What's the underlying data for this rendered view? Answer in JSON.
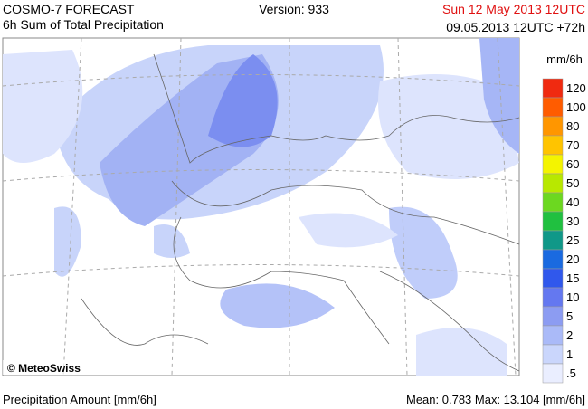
{
  "header": {
    "product": "COSMO-7 FORECAST",
    "subtitle": "6h Sum of Total Precipitation",
    "version": "Version: 933",
    "valid_time": "Sun 12 May 2013 12UTC",
    "run": "09.05.2013 12UTC +72h"
  },
  "map": {
    "copyright": "© MeteoSwiss"
  },
  "legend": {
    "title": "mm/6h",
    "entries": [
      {
        "label": "120",
        "color": "#f02a10"
      },
      {
        "label": "100",
        "color": "#ff5c00"
      },
      {
        "label": "80",
        "color": "#ff9600"
      },
      {
        "label": "70",
        "color": "#ffc400"
      },
      {
        "label": "60",
        "color": "#f4f400"
      },
      {
        "label": "50",
        "color": "#b8e800"
      },
      {
        "label": "40",
        "color": "#6cd820"
      },
      {
        "label": "30",
        "color": "#20c040"
      },
      {
        "label": "25",
        "color": "#109888"
      },
      {
        "label": "20",
        "color": "#1a6ae0"
      },
      {
        "label": "15",
        "color": "#3058ec"
      },
      {
        "label": "10",
        "color": "#6478f0"
      },
      {
        "label": "5",
        "color": "#8c9cf2"
      },
      {
        "label": "2",
        "color": "#aabaf8"
      },
      {
        "label": "1",
        "color": "#cad6fc"
      },
      {
        "label": ".5",
        "color": "#eaeeff"
      }
    ]
  },
  "footer": {
    "left": "Precipitation Amount [mm/6h]",
    "right": "Mean:  0.783 Max:  13.104 [mm/6h]"
  }
}
